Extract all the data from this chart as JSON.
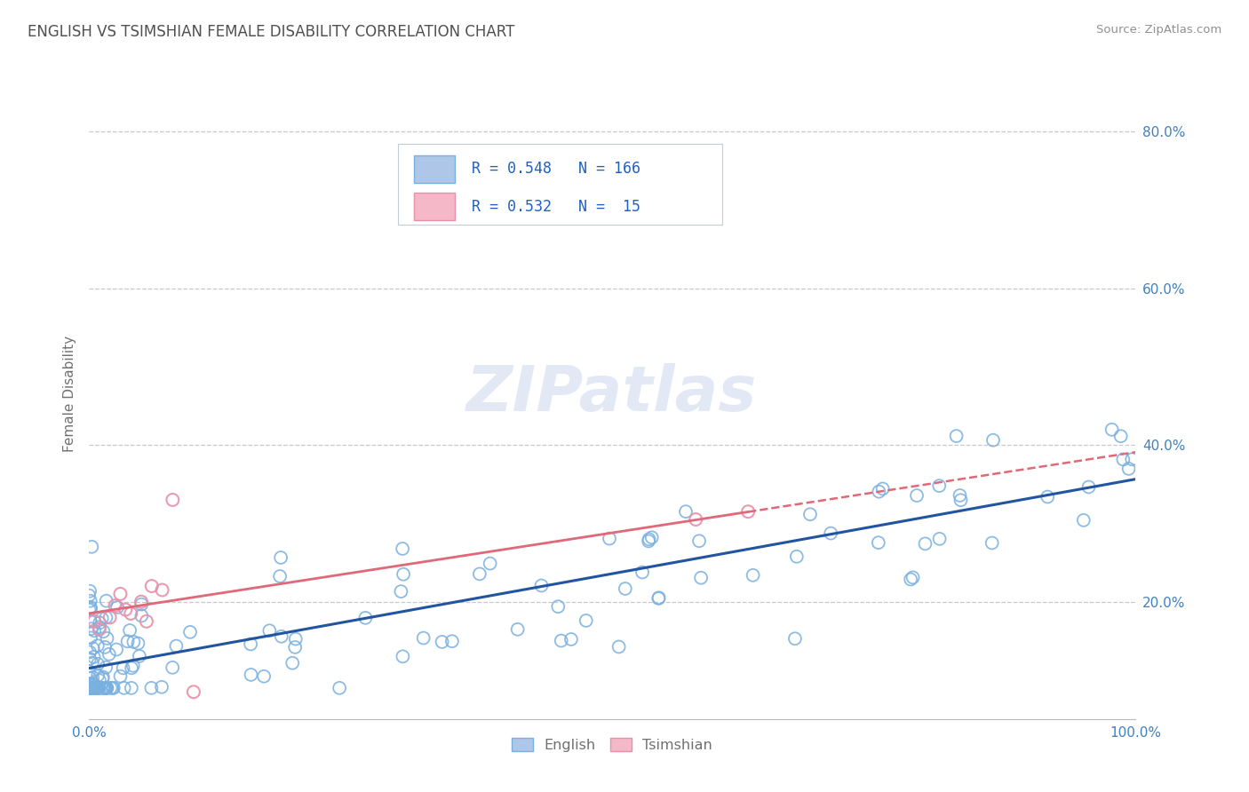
{
  "title": "ENGLISH VS TSIMSHIAN FEMALE DISABILITY CORRELATION CHART",
  "source": "Source: ZipAtlas.com",
  "ylabel": "Female Disability",
  "xlim": [
    0.0,
    1.0
  ],
  "ylim": [
    0.05,
    0.88
  ],
  "xticks": [
    0.0,
    0.2,
    0.4,
    0.6,
    0.8,
    1.0
  ],
  "xticklabels": [
    "0.0%",
    "",
    "",
    "",
    "",
    "100.0%"
  ],
  "ytick_positions": [
    0.2,
    0.4,
    0.6,
    0.8
  ],
  "ytick_labels": [
    "20.0%",
    "40.0%",
    "60.0%",
    "80.0%"
  ],
  "english_R": 0.548,
  "english_N": 166,
  "tsimshian_R": 0.532,
  "tsimshian_N": 15,
  "english_line_color": "#2155a0",
  "tsimshian_line_color": "#e06878",
  "scatter_english_facecolor": "none",
  "scatter_english_edgecolor": "#7ab0e0",
  "scatter_tsimshian_facecolor": "none",
  "scatter_tsimshian_edgecolor": "#e890a8",
  "watermark": "ZIPatlas",
  "background_color": "#ffffff",
  "title_color": "#505050",
  "title_fontsize": 12,
  "axis_label_color": "#707070",
  "tick_color": "#4080c0",
  "grid_color": "#c8c8cc",
  "source_color": "#909090",
  "legend_text_color": "#2060c0",
  "legend_english_fill": "#aec6e8",
  "legend_english_edge": "#7ab0e0",
  "legend_tsimshian_fill": "#f4b8c8",
  "legend_tsimshian_edge": "#e890a8",
  "bottom_legend_text_color": "#707070"
}
